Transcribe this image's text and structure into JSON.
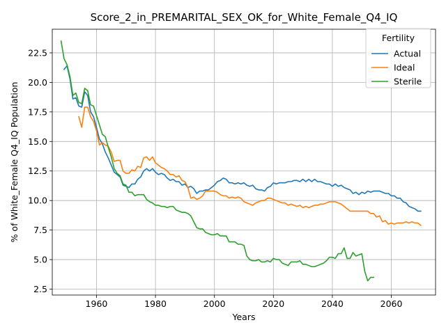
{
  "chart_data": {
    "type": "line",
    "title": "Score_2_in_PREMARITAL_SEX_OK_for_White_Female_Q4_IQ",
    "xlabel": "Years",
    "ylabel": "% of White_Female Q4_IQ Population",
    "xlim": [
      1945,
      2075
    ],
    "ylim": [
      2.0,
      24.5
    ],
    "x_ticks": [
      1960,
      1980,
      2000,
      2020,
      2040,
      2060
    ],
    "y_ticks": [
      2.5,
      5.0,
      7.5,
      10.0,
      12.5,
      15.0,
      17.5,
      20.0,
      22.5
    ],
    "x_tick_labels": [
      "1960",
      "1980",
      "2000",
      "2020",
      "2040",
      "2060"
    ],
    "y_tick_labels": [
      "2.5",
      "5.0",
      "7.5",
      "10.0",
      "12.5",
      "15.0",
      "17.5",
      "20.0",
      "22.5"
    ],
    "grid": true,
    "legend": {
      "title": "Fertility",
      "placement": "upper right"
    },
    "series": [
      {
        "name": "Actual",
        "color": "#1f77b4",
        "x": [
          1949,
          1950,
          1951,
          1952,
          1953,
          1954,
          1955,
          1956,
          1957,
          1958,
          1959,
          1960,
          1961,
          1962,
          1963,
          1964,
          1965,
          1966,
          1967,
          1968,
          1969,
          1970,
          1971,
          1972,
          1973,
          1974,
          1975,
          1976,
          1977,
          1978,
          1979,
          1980,
          1981,
          1982,
          1983,
          1984,
          1985,
          1986,
          1987,
          1988,
          1989,
          1990,
          1991,
          1992,
          1993,
          1994,
          1995,
          1996,
          1997,
          1998,
          1999,
          2000,
          2001,
          2002,
          2003,
          2004,
          2005,
          2006,
          2007,
          2008,
          2009,
          2010,
          2011,
          2012,
          2013,
          2014,
          2015,
          2016,
          2017,
          2018,
          2019,
          2020,
          2021,
          2022,
          2023,
          2024,
          2025,
          2026,
          2027,
          2028,
          2029,
          2030,
          2031,
          2032,
          2033,
          2034,
          2035,
          2036,
          2037,
          2038,
          2039,
          2040,
          2041,
          2042,
          2043,
          2044,
          2045,
          2046,
          2047,
          2048,
          2049,
          2050,
          2051,
          2052,
          2053,
          2054,
          2055,
          2056,
          2057,
          2058,
          2059,
          2060,
          2061,
          2062,
          2063,
          2064,
          2065,
          2066,
          2067,
          2068,
          2069,
          2070
        ],
        "values": [
          21.1,
          21.4,
          20.3,
          18.6,
          18.7,
          18.0,
          17.9,
          19.2,
          18.9,
          17.5,
          17.1,
          16.2,
          15.2,
          14.8,
          14.1,
          13.6,
          13.0,
          12.4,
          12.2,
          12.0,
          11.3,
          11.2,
          11.1,
          11.4,
          11.4,
          11.8,
          12.0,
          12.5,
          12.7,
          12.5,
          12.7,
          12.4,
          12.2,
          12.3,
          12.2,
          11.9,
          11.7,
          11.8,
          11.6,
          11.6,
          11.3,
          11.4,
          11.1,
          11.2,
          11.0,
          10.6,
          10.8,
          10.8,
          10.9,
          10.9,
          11.1,
          11.3,
          11.6,
          11.7,
          11.9,
          11.8,
          11.5,
          11.5,
          11.4,
          11.5,
          11.4,
          11.5,
          11.3,
          11.2,
          11.3,
          11.0,
          10.9,
          10.9,
          10.8,
          11.1,
          11.2,
          11.5,
          11.4,
          11.5,
          11.5,
          11.5,
          11.6,
          11.6,
          11.7,
          11.7,
          11.6,
          11.8,
          11.6,
          11.8,
          11.6,
          11.8,
          11.6,
          11.6,
          11.5,
          11.4,
          11.4,
          11.2,
          11.4,
          11.2,
          11.3,
          11.1,
          11.0,
          10.9,
          10.6,
          10.7,
          10.5,
          10.7,
          10.6,
          10.8,
          10.7,
          10.8,
          10.8,
          10.8,
          10.7,
          10.6,
          10.6,
          10.4,
          10.4,
          10.2,
          10.2,
          9.9,
          9.8,
          9.5,
          9.4,
          9.3,
          9.1,
          9.1
        ]
      },
      {
        "name": "Ideal",
        "color": "#ff7f0e",
        "x": [
          1954,
          1955,
          1956,
          1957,
          1958,
          1959,
          1960,
          1961,
          1962,
          1963,
          1964,
          1965,
          1966,
          1967,
          1968,
          1969,
          1970,
          1971,
          1972,
          1973,
          1974,
          1975,
          1976,
          1977,
          1978,
          1979,
          1980,
          1981,
          1982,
          1983,
          1984,
          1985,
          1986,
          1987,
          1988,
          1989,
          1990,
          1991,
          1992,
          1993,
          1994,
          1995,
          1996,
          1997,
          1998,
          1999,
          2000,
          2001,
          2002,
          2003,
          2004,
          2005,
          2006,
          2007,
          2008,
          2009,
          2010,
          2011,
          2012,
          2013,
          2014,
          2015,
          2016,
          2017,
          2018,
          2019,
          2020,
          2021,
          2022,
          2023,
          2024,
          2025,
          2026,
          2027,
          2028,
          2029,
          2030,
          2031,
          2032,
          2033,
          2034,
          2035,
          2036,
          2037,
          2038,
          2039,
          2040,
          2041,
          2042,
          2043,
          2044,
          2045,
          2046,
          2047,
          2048,
          2049,
          2050,
          2051,
          2052,
          2053,
          2054,
          2055,
          2056,
          2057,
          2058,
          2059,
          2060,
          2061,
          2062,
          2063,
          2064,
          2065,
          2066,
          2067,
          2068,
          2069,
          2070
        ],
        "values": [
          17.1,
          16.2,
          17.9,
          17.9,
          17.1,
          16.7,
          15.9,
          14.7,
          14.9,
          14.7,
          14.6,
          14.1,
          13.3,
          13.4,
          13.4,
          12.5,
          12.3,
          12.3,
          12.6,
          12.5,
          12.9,
          12.8,
          13.6,
          13.7,
          13.4,
          13.7,
          13.2,
          13.0,
          12.8,
          12.7,
          12.5,
          12.2,
          12.2,
          12.0,
          12.1,
          11.7,
          11.6,
          11.1,
          10.2,
          10.3,
          10.1,
          10.2,
          10.4,
          10.8,
          10.8,
          10.8,
          10.8,
          10.7,
          10.5,
          10.4,
          10.4,
          10.2,
          10.3,
          10.2,
          10.3,
          10.2,
          9.9,
          9.8,
          9.7,
          9.6,
          9.8,
          9.9,
          10.0,
          10.0,
          10.2,
          10.2,
          10.1,
          10.0,
          9.9,
          9.8,
          9.8,
          9.6,
          9.7,
          9.6,
          9.5,
          9.6,
          9.4,
          9.5,
          9.4,
          9.5,
          9.6,
          9.6,
          9.7,
          9.7,
          9.8,
          9.9,
          9.9,
          9.9,
          9.8,
          9.7,
          9.5,
          9.3,
          9.1,
          9.1,
          9.1,
          9.1,
          9.1,
          9.1,
          9.1,
          8.9,
          8.9,
          8.6,
          8.7,
          8.2,
          8.3,
          8.0,
          8.1,
          8.0,
          8.1,
          8.1,
          8.1,
          8.2,
          8.1,
          8.2,
          8.1,
          8.1,
          7.9
        ]
      },
      {
        "name": "Sterile",
        "color": "#2ca02c",
        "x": [
          1948,
          1949,
          1950,
          1951,
          1952,
          1953,
          1954,
          1955,
          1956,
          1957,
          1958,
          1959,
          1960,
          1961,
          1962,
          1963,
          1964,
          1965,
          1966,
          1967,
          1968,
          1969,
          1970,
          1971,
          1972,
          1973,
          1974,
          1975,
          1976,
          1977,
          1978,
          1979,
          1980,
          1981,
          1982,
          1983,
          1984,
          1985,
          1986,
          1987,
          1988,
          1989,
          1990,
          1991,
          1992,
          1993,
          1994,
          1995,
          1996,
          1997,
          1998,
          1999,
          2000,
          2001,
          2002,
          2003,
          2004,
          2005,
          2006,
          2007,
          2008,
          2009,
          2010,
          2011,
          2012,
          2013,
          2014,
          2015,
          2016,
          2017,
          2018,
          2019,
          2020,
          2021,
          2022,
          2023,
          2024,
          2025,
          2026,
          2027,
          2028,
          2029,
          2030,
          2031,
          2032,
          2033,
          2034,
          2035,
          2036,
          2037,
          2038,
          2039,
          2040,
          2041,
          2042,
          2043,
          2044,
          2045,
          2046,
          2047,
          2048,
          2049,
          2050,
          2051,
          2052,
          2053,
          2054
        ],
        "values": [
          23.5,
          22.0,
          21.5,
          20.5,
          18.9,
          19.1,
          18.3,
          18.2,
          19.5,
          19.3,
          18.1,
          18.0,
          17.2,
          16.4,
          15.6,
          15.4,
          14.5,
          13.7,
          12.7,
          12.3,
          12.1,
          11.4,
          11.3,
          10.7,
          10.7,
          10.4,
          10.5,
          10.5,
          10.5,
          10.1,
          9.9,
          9.8,
          9.6,
          9.6,
          9.5,
          9.5,
          9.4,
          9.5,
          9.5,
          9.2,
          9.1,
          9.0,
          9.0,
          8.9,
          8.7,
          8.2,
          7.7,
          7.6,
          7.6,
          7.3,
          7.2,
          7.1,
          7.1,
          7.2,
          7.0,
          7.0,
          7.0,
          6.5,
          6.5,
          6.5,
          6.3,
          6.3,
          6.2,
          5.3,
          5.0,
          4.9,
          4.9,
          5.0,
          4.8,
          4.8,
          4.9,
          4.8,
          5.1,
          5.0,
          5.0,
          4.7,
          4.6,
          4.5,
          4.8,
          4.8,
          4.8,
          4.9,
          4.6,
          4.6,
          4.5,
          4.4,
          4.4,
          4.5,
          4.6,
          4.7,
          4.9,
          5.2,
          5.2,
          5.1,
          5.5,
          5.5,
          6.0,
          5.1,
          5.1,
          5.6,
          5.3,
          5.4,
          5.5,
          4.0,
          3.2,
          3.5,
          3.5
        ]
      }
    ]
  }
}
